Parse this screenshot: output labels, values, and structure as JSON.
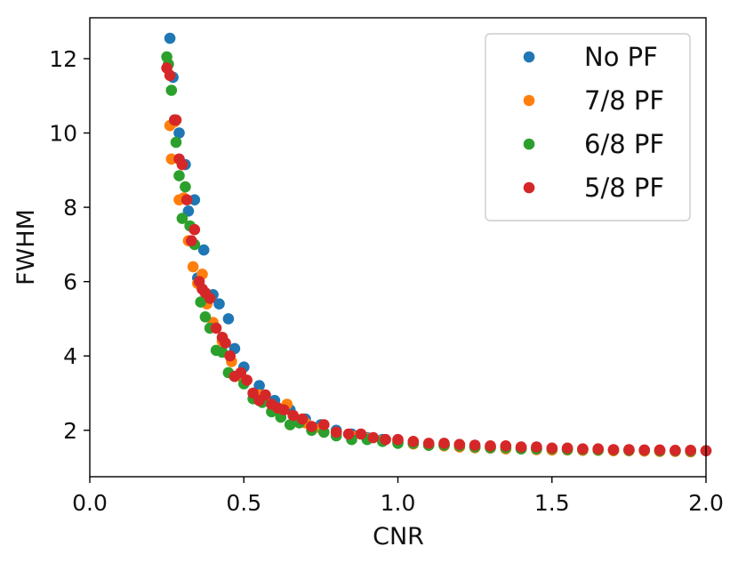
{
  "chart_data": {
    "type": "scatter",
    "title": "",
    "xlabel": "CNR",
    "ylabel": "FWHM",
    "xlim": [
      0.0,
      2.0
    ],
    "ylim": [
      0.75,
      13.1
    ],
    "xticks": [
      0.0,
      0.5,
      1.0,
      1.5,
      2.0
    ],
    "xtick_labels": [
      "0.0",
      "0.5",
      "1.0",
      "1.5",
      "2.0"
    ],
    "yticks": [
      2,
      4,
      6,
      8,
      10,
      12
    ],
    "ytick_labels": [
      "2",
      "4",
      "6",
      "8",
      "10",
      "12"
    ],
    "grid": false,
    "legend_position": "top-right",
    "series": [
      {
        "name": "No PF",
        "color": "#1f77b4",
        "x": [
          0.26,
          0.27,
          0.29,
          0.31,
          0.32,
          0.34,
          0.35,
          0.37,
          0.4,
          0.42,
          0.45,
          0.47,
          0.5,
          0.55,
          0.6,
          0.65,
          0.7,
          0.75,
          0.8,
          0.85,
          0.9,
          0.95,
          1.0,
          1.05,
          1.1,
          1.15,
          1.2,
          1.25,
          1.3,
          1.35,
          1.4,
          1.45,
          1.5,
          1.55,
          1.6,
          1.65,
          1.7,
          1.75,
          1.8,
          1.85,
          1.9,
          1.95,
          2.0
        ],
        "y": [
          12.55,
          11.5,
          10.0,
          9.15,
          7.9,
          8.2,
          6.1,
          6.85,
          5.65,
          5.4,
          5.0,
          4.2,
          3.7,
          3.2,
          2.8,
          2.55,
          2.3,
          2.15,
          2.0,
          1.9,
          1.8,
          1.75,
          1.7,
          1.65,
          1.6,
          1.6,
          1.58,
          1.55,
          1.55,
          1.52,
          1.52,
          1.5,
          1.5,
          1.5,
          1.48,
          1.48,
          1.47,
          1.47,
          1.46,
          1.46,
          1.45,
          1.45,
          1.45
        ]
      },
      {
        "name": "7/8 PF",
        "color": "#ff7f0e",
        "x": [
          0.26,
          0.265,
          0.275,
          0.29,
          0.305,
          0.32,
          0.335,
          0.35,
          0.365,
          0.38,
          0.4,
          0.43,
          0.46,
          0.5,
          0.55,
          0.6,
          0.64,
          0.7,
          0.75,
          0.8,
          0.85,
          0.9,
          0.95,
          1.0,
          1.05,
          1.1,
          1.15,
          1.2,
          1.25,
          1.3,
          1.35,
          1.4,
          1.45,
          1.5,
          1.55,
          1.6,
          1.65,
          1.7,
          1.75,
          1.8,
          1.85,
          1.9,
          1.95
        ],
        "y": [
          10.2,
          9.3,
          10.3,
          8.2,
          8.25,
          7.1,
          6.4,
          5.95,
          6.2,
          5.4,
          4.9,
          4.4,
          3.85,
          3.35,
          2.95,
          2.6,
          2.7,
          2.2,
          2.05,
          1.95,
          1.85,
          1.78,
          1.72,
          1.68,
          1.63,
          1.6,
          1.58,
          1.55,
          1.53,
          1.52,
          1.5,
          1.5,
          1.48,
          1.47,
          1.47,
          1.46,
          1.46,
          1.45,
          1.45,
          1.44,
          1.43,
          1.43,
          1.42
        ]
      },
      {
        "name": "6/8 PF",
        "color": "#2ca02c",
        "x": [
          0.25,
          0.255,
          0.265,
          0.275,
          0.28,
          0.29,
          0.3,
          0.31,
          0.325,
          0.34,
          0.36,
          0.375,
          0.39,
          0.41,
          0.43,
          0.45,
          0.47,
          0.5,
          0.53,
          0.56,
          0.59,
          0.62,
          0.65,
          0.68,
          0.72,
          0.76,
          0.8,
          0.85,
          0.9,
          0.95,
          1.0,
          1.05,
          1.1,
          1.15,
          1.2,
          1.25,
          1.3,
          1.35,
          1.4,
          1.45,
          1.5,
          1.55,
          1.6,
          1.65,
          1.7,
          1.75,
          1.8,
          1.85,
          1.9,
          1.95
        ],
        "y": [
          12.05,
          11.85,
          11.15,
          10.35,
          9.75,
          8.85,
          7.7,
          8.55,
          7.5,
          7.0,
          5.45,
          5.05,
          4.75,
          4.15,
          4.1,
          3.55,
          3.45,
          3.25,
          2.85,
          2.75,
          2.5,
          2.35,
          2.15,
          2.2,
          2.0,
          1.95,
          1.85,
          1.75,
          1.75,
          1.7,
          1.65,
          1.65,
          1.6,
          1.6,
          1.58,
          1.55,
          1.53,
          1.53,
          1.5,
          1.5,
          1.5,
          1.48,
          1.48,
          1.47,
          1.47,
          1.46,
          1.46,
          1.45,
          1.45,
          1.44
        ]
      },
      {
        "name": "5/8 PF",
        "color": "#d62728",
        "x": [
          0.25,
          0.26,
          0.275,
          0.28,
          0.29,
          0.3,
          0.315,
          0.33,
          0.34,
          0.355,
          0.365,
          0.375,
          0.39,
          0.41,
          0.43,
          0.44,
          0.455,
          0.47,
          0.49,
          0.51,
          0.53,
          0.55,
          0.57,
          0.59,
          0.61,
          0.63,
          0.66,
          0.69,
          0.72,
          0.76,
          0.8,
          0.84,
          0.88,
          0.92,
          0.96,
          1.0,
          1.05,
          1.1,
          1.15,
          1.2,
          1.25,
          1.3,
          1.35,
          1.4,
          1.45,
          1.5,
          1.55,
          1.6,
          1.65,
          1.7,
          1.75,
          1.8,
          1.85,
          1.9,
          1.95,
          2.0
        ],
        "y": [
          11.75,
          11.55,
          10.35,
          10.35,
          9.3,
          9.15,
          8.2,
          7.1,
          7.4,
          6.0,
          5.8,
          5.7,
          5.55,
          4.75,
          4.5,
          4.35,
          4.0,
          3.45,
          3.55,
          3.35,
          3.0,
          2.8,
          2.95,
          2.7,
          2.6,
          2.55,
          2.4,
          2.3,
          2.1,
          2.15,
          1.95,
          1.9,
          1.9,
          1.8,
          1.75,
          1.75,
          1.7,
          1.65,
          1.65,
          1.62,
          1.6,
          1.58,
          1.58,
          1.55,
          1.55,
          1.52,
          1.52,
          1.5,
          1.5,
          1.48,
          1.48,
          1.47,
          1.47,
          1.46,
          1.46,
          1.45
        ]
      }
    ]
  }
}
